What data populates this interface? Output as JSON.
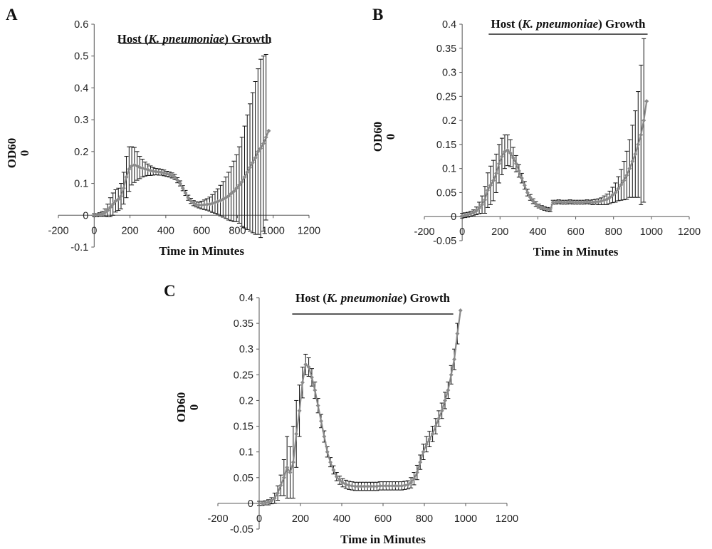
{
  "chart_data": [
    {
      "panel": "A",
      "type": "scatter",
      "annotation": {
        "prefix": "Host (",
        "italic": "K. pneumoniae",
        "suffix": ") Growth",
        "x_start": 140,
        "x_end": 980
      },
      "xlabel": "Time in Minutes",
      "ylabel_line1": "OD60",
      "ylabel_line2": "0",
      "xlim": [
        -200,
        1200
      ],
      "ylim": [
        -0.1,
        0.6
      ],
      "xticks": [
        -200,
        0,
        200,
        400,
        600,
        800,
        1000,
        1200
      ],
      "xtick_labels": [
        "-200",
        "0",
        "200",
        "400",
        "600",
        "800",
        "1000",
        "1200"
      ],
      "yticks": [
        -0.1,
        0,
        0.1,
        0.2,
        0.3,
        0.4,
        0.5,
        0.6
      ],
      "ytick_labels": [
        "-0.1",
        "0",
        "0.1",
        "0.2",
        "0.3",
        "0.4",
        "0.5",
        "0.6"
      ],
      "series": [
        {
          "x": [
            0,
            15,
            30,
            45,
            60,
            75,
            90,
            105,
            120,
            135,
            150,
            165,
            180,
            195,
            210,
            225,
            240,
            255,
            270,
            285,
            300,
            315,
            330,
            345,
            360,
            375,
            390,
            405,
            420,
            435,
            450,
            465,
            480,
            495,
            510,
            525,
            540,
            555,
            570,
            585,
            600,
            615,
            630,
            645,
            660,
            675,
            690,
            705,
            720,
            735,
            750,
            765,
            780,
            795,
            810,
            825,
            840,
            855,
            870,
            885,
            900,
            915,
            930,
            945,
            960,
            975
          ],
          "y": [
            0,
            0,
            0.002,
            0.004,
            0.008,
            0.015,
            0.025,
            0.035,
            0.045,
            0.05,
            0.06,
            0.085,
            0.12,
            0.145,
            0.155,
            0.158,
            0.155,
            0.15,
            0.148,
            0.145,
            0.143,
            0.14,
            0.138,
            0.137,
            0.136,
            0.135,
            0.133,
            0.13,
            0.128,
            0.125,
            0.12,
            0.11,
            0.1,
            0.085,
            0.07,
            0.055,
            0.045,
            0.038,
            0.034,
            0.032,
            0.032,
            0.033,
            0.034,
            0.035,
            0.037,
            0.04,
            0.043,
            0.046,
            0.05,
            0.055,
            0.06,
            0.068,
            0.075,
            0.085,
            0.095,
            0.105,
            0.12,
            0.135,
            0.15,
            0.165,
            0.18,
            0.2,
            0.21,
            0.225,
            0.245,
            0.265
          ],
          "err": [
            0.005,
            0.005,
            0.006,
            0.008,
            0.012,
            0.02,
            0.03,
            0.035,
            0.035,
            0.035,
            0.04,
            0.05,
            0.065,
            0.07,
            0.06,
            0.055,
            0.045,
            0.035,
            0.028,
            0.022,
            0.018,
            0.015,
            0.012,
            0.01,
            0.01,
            0.009,
            0.009,
            0.008,
            0.008,
            0.008,
            0.008,
            0.008,
            0.008,
            0.008,
            0.008,
            0.008,
            0.008,
            0.008,
            0.008,
            0.009,
            0.012,
            0.015,
            0.018,
            0.022,
            0.028,
            0.034,
            0.04,
            0.048,
            0.056,
            0.065,
            0.075,
            0.085,
            0.095,
            0.105,
            0.12,
            0.14,
            0.16,
            0.18,
            0.2,
            0.22,
            0.24,
            0.26,
            0.28,
            0.275,
            0.26,
            0
          ]
        }
      ]
    },
    {
      "panel": "B",
      "type": "scatter",
      "annotation": {
        "prefix": "Host (",
        "italic": "K. pneumoniae",
        "suffix": ") Growth",
        "x_start": 140,
        "x_end": 980
      },
      "xlabel": "Time in Minutes",
      "ylabel_line1": "OD60",
      "ylabel_line2": "0",
      "xlim": [
        -200,
        1200
      ],
      "ylim": [
        -0.05,
        0.4
      ],
      "xticks": [
        -200,
        0,
        200,
        400,
        600,
        800,
        1000,
        1200
      ],
      "xtick_labels": [
        "-200",
        "0",
        "200",
        "400",
        "600",
        "800",
        "1000",
        "1200"
      ],
      "yticks": [
        -0.05,
        0,
        0.05,
        0.1,
        0.15,
        0.2,
        0.25,
        0.3,
        0.35,
        0.4
      ],
      "ytick_labels": [
        "-0.05",
        "0",
        "0.05",
        "0.1",
        "0.15",
        "0.2",
        "0.25",
        "0.3",
        "0.35",
        "0.4"
      ],
      "series": [
        {
          "x": [
            0,
            15,
            30,
            45,
            60,
            75,
            90,
            105,
            120,
            135,
            150,
            165,
            180,
            195,
            210,
            225,
            240,
            255,
            270,
            285,
            300,
            315,
            330,
            345,
            360,
            375,
            390,
            405,
            420,
            435,
            450,
            465,
            480,
            495,
            510,
            525,
            540,
            555,
            570,
            585,
            600,
            615,
            630,
            645,
            660,
            675,
            690,
            705,
            720,
            735,
            750,
            765,
            780,
            795,
            810,
            825,
            840,
            855,
            870,
            885,
            900,
            915,
            930,
            945,
            960,
            975
          ],
          "y": [
            0.002,
            0.003,
            0.004,
            0.006,
            0.008,
            0.012,
            0.018,
            0.025,
            0.035,
            0.055,
            0.065,
            0.075,
            0.09,
            0.11,
            0.125,
            0.135,
            0.138,
            0.132,
            0.122,
            0.11,
            0.095,
            0.08,
            0.065,
            0.05,
            0.04,
            0.032,
            0.026,
            0.022,
            0.019,
            0.017,
            0.015,
            0.014,
            0.03,
            0.03,
            0.031,
            0.03,
            0.03,
            0.03,
            0.031,
            0.03,
            0.03,
            0.03,
            0.03,
            0.03,
            0.031,
            0.03,
            0.03,
            0.031,
            0.031,
            0.032,
            0.034,
            0.036,
            0.04,
            0.045,
            0.05,
            0.058,
            0.066,
            0.075,
            0.086,
            0.1,
            0.115,
            0.13,
            0.15,
            0.17,
            0.2,
            0.24
          ],
          "err": [
            0.005,
            0.005,
            0.005,
            0.005,
            0.006,
            0.008,
            0.012,
            0.018,
            0.028,
            0.036,
            0.04,
            0.042,
            0.04,
            0.04,
            0.038,
            0.035,
            0.032,
            0.028,
            0.022,
            0.017,
            0.013,
            0.01,
            0.008,
            0.007,
            0.006,
            0.005,
            0.005,
            0.004,
            0.004,
            0.004,
            0.004,
            0.004,
            0.004,
            0.004,
            0.004,
            0.004,
            0.004,
            0.004,
            0.004,
            0.004,
            0.004,
            0.004,
            0.004,
            0.004,
            0.004,
            0.004,
            0.005,
            0.005,
            0.006,
            0.007,
            0.009,
            0.011,
            0.013,
            0.016,
            0.02,
            0.025,
            0.032,
            0.04,
            0.05,
            0.06,
            0.075,
            0.09,
            0.11,
            0.145,
            0.17,
            0
          ]
        }
      ]
    },
    {
      "panel": "C",
      "type": "scatter",
      "annotation": {
        "prefix": "Host (",
        "italic": "K. pneumoniae",
        "suffix": ") Growth",
        "x_start": 160,
        "x_end": 940
      },
      "xlabel": "Time in Minutes",
      "ylabel_line1": "OD60",
      "ylabel_line2": "0",
      "xlim": [
        -200,
        1200
      ],
      "ylim": [
        -0.05,
        0.4
      ],
      "xticks": [
        -200,
        0,
        200,
        400,
        600,
        800,
        1000,
        1200
      ],
      "xtick_labels": [
        "-200",
        "0",
        "200",
        "400",
        "600",
        "800",
        "1000",
        "1200"
      ],
      "yticks": [
        -0.05,
        0,
        0.05,
        0.1,
        0.15,
        0.2,
        0.25,
        0.3,
        0.35,
        0.4
      ],
      "ytick_labels": [
        "-0.05",
        "0",
        "0.05",
        "0.1",
        "0.15",
        "0.2",
        "0.25",
        "0.3",
        "0.35",
        "0.4"
      ],
      "series": [
        {
          "x": [
            0,
            15,
            30,
            45,
            60,
            75,
            90,
            105,
            120,
            135,
            150,
            165,
            180,
            195,
            210,
            225,
            240,
            255,
            270,
            285,
            300,
            315,
            330,
            345,
            360,
            375,
            390,
            405,
            420,
            435,
            450,
            465,
            480,
            495,
            510,
            525,
            540,
            555,
            570,
            585,
            600,
            615,
            630,
            645,
            660,
            675,
            690,
            705,
            720,
            735,
            750,
            765,
            780,
            795,
            810,
            825,
            840,
            855,
            870,
            885,
            900,
            915,
            930,
            945,
            960,
            975
          ],
          "y": [
            0,
            0,
            0.001,
            0.002,
            0.005,
            0.01,
            0.02,
            0.035,
            0.05,
            0.07,
            0.06,
            0.08,
            0.135,
            0.18,
            0.235,
            0.27,
            0.265,
            0.245,
            0.22,
            0.19,
            0.16,
            0.13,
            0.1,
            0.08,
            0.065,
            0.052,
            0.045,
            0.04,
            0.037,
            0.035,
            0.034,
            0.033,
            0.033,
            0.033,
            0.033,
            0.033,
            0.033,
            0.033,
            0.033,
            0.034,
            0.034,
            0.034,
            0.034,
            0.034,
            0.034,
            0.034,
            0.034,
            0.035,
            0.036,
            0.04,
            0.048,
            0.06,
            0.08,
            0.1,
            0.115,
            0.125,
            0.135,
            0.15,
            0.165,
            0.18,
            0.2,
            0.22,
            0.25,
            0.28,
            0.33,
            0.375
          ],
          "err": [
            0.004,
            0.004,
            0.004,
            0.005,
            0.006,
            0.01,
            0.014,
            0.02,
            0.035,
            0.06,
            0.05,
            0.07,
            0.065,
            0.05,
            0.03,
            0.02,
            0.018,
            0.017,
            0.016,
            0.014,
            0.013,
            0.011,
            0.01,
            0.009,
            0.008,
            0.008,
            0.008,
            0.008,
            0.008,
            0.008,
            0.008,
            0.008,
            0.008,
            0.008,
            0.008,
            0.008,
            0.008,
            0.008,
            0.008,
            0.008,
            0.008,
            0.008,
            0.008,
            0.008,
            0.008,
            0.008,
            0.008,
            0.008,
            0.008,
            0.01,
            0.012,
            0.014,
            0.014,
            0.015,
            0.015,
            0.015,
            0.015,
            0.015,
            0.015,
            0.015,
            0.016,
            0.016,
            0.018,
            0.02,
            0.02,
            0
          ]
        }
      ]
    }
  ]
}
